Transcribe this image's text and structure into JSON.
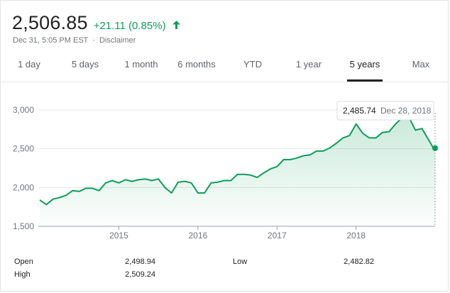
{
  "quote": {
    "price": "2,506.85",
    "change": "+21.11 (0.85%)",
    "timestamp": "Dec 31, 5:05 PM EST",
    "separator": "·",
    "disclaimer": "Disclaimer",
    "up_color": "#0f9d58",
    "arrow_icon": "arrow-up-icon"
  },
  "tabs": [
    {
      "label": "1 day"
    },
    {
      "label": "5 days"
    },
    {
      "label": "1 month"
    },
    {
      "label": "6 months"
    },
    {
      "label": "YTD"
    },
    {
      "label": "1 year"
    },
    {
      "label": "5 years",
      "active": true
    },
    {
      "label": "Max"
    }
  ],
  "tooltip": {
    "value": "2,485.74",
    "date": "Dec 28, 2018"
  },
  "stats": {
    "open_label": "Open",
    "open_value": "2,498.94",
    "high_label": "High",
    "high_value": "2,509.24",
    "low_label": "Low",
    "low_value": "2,482.82"
  },
  "chart_data": {
    "type": "area",
    "series": [
      {
        "x": [
          "2014-01",
          "2014-02",
          "2014-03",
          "2014-04",
          "2014-05",
          "2014-06",
          "2014-07",
          "2014-08",
          "2014-09",
          "2014-10",
          "2014-11",
          "2014-12",
          "2015-01",
          "2015-02",
          "2015-03",
          "2015-04",
          "2015-05",
          "2015-06",
          "2015-07",
          "2015-08",
          "2015-09",
          "2015-10",
          "2015-11",
          "2015-12",
          "2016-01",
          "2016-02",
          "2016-03",
          "2016-04",
          "2016-05",
          "2016-06",
          "2016-07",
          "2016-08",
          "2016-09",
          "2016-10",
          "2016-11",
          "2016-12",
          "2017-01",
          "2017-02",
          "2017-03",
          "2017-04",
          "2017-05",
          "2017-06",
          "2017-07",
          "2017-08",
          "2017-09",
          "2017-10",
          "2017-11",
          "2017-12",
          "2018-01",
          "2018-02",
          "2018-03",
          "2018-04",
          "2018-05",
          "2018-06",
          "2018-07",
          "2018-08",
          "2018-09",
          "2018-10",
          "2018-11",
          "2018-12-28",
          "2018-12-31"
        ],
        "values": [
          1840,
          1780,
          1850,
          1870,
          1900,
          1960,
          1950,
          1990,
          1990,
          1960,
          2060,
          2090,
          2060,
          2100,
          2080,
          2100,
          2110,
          2090,
          2110,
          2000,
          1930,
          2070,
          2080,
          2060,
          1930,
          1930,
          2060,
          2070,
          2090,
          2090,
          2170,
          2170,
          2160,
          2130,
          2190,
          2240,
          2270,
          2360,
          2360,
          2380,
          2410,
          2420,
          2470,
          2470,
          2510,
          2570,
          2640,
          2670,
          2820,
          2700,
          2640,
          2640,
          2710,
          2720,
          2820,
          2900,
          2910,
          2740,
          2760,
          2485.74,
          2506.85
        ]
      }
    ],
    "xticks": [
      "2015",
      "2016",
      "2017",
      "2018"
    ],
    "yticks": [
      "1,500",
      "2,000",
      "2,500",
      "3,000"
    ],
    "ylim": [
      1500,
      3000
    ],
    "xlim": [
      "2014-01",
      "2018-12-31"
    ],
    "grid": "horizontal",
    "color": "#0f9d58"
  }
}
